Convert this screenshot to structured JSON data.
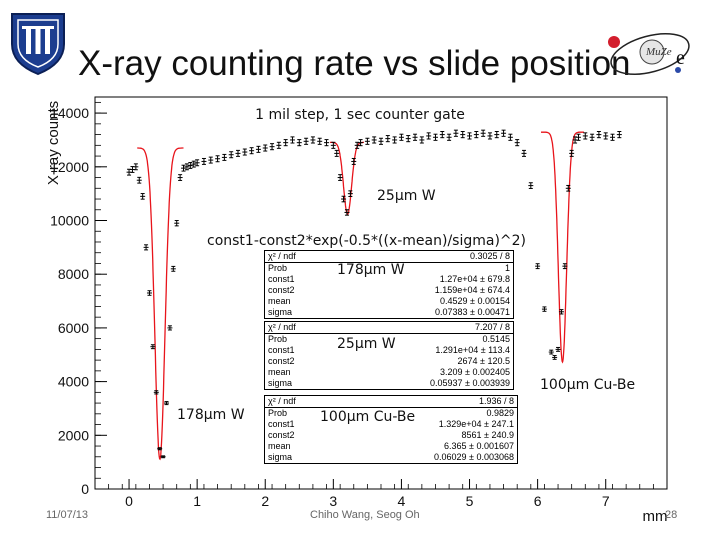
{
  "slide": {
    "title": "X-ray counting rate vs slide position",
    "footer_date": "11/07/13",
    "footer_author": "Chiho Wang, Seog Oh",
    "page_number": "28",
    "logo_icon": "university-shield-logo-icon",
    "muze_logo_icon": "muze-experiment-logo-icon",
    "muze_logo_text": "MuZe"
  },
  "chart_data": {
    "type": "scatter",
    "title": "1 mil step, 1 sec counter gate",
    "xlabel": "mm",
    "ylabel": "X-ray counts",
    "xlim": [
      -0.5,
      7.9
    ],
    "ylim": [
      0,
      14600
    ],
    "xticks": [
      0,
      1,
      2,
      3,
      4,
      5,
      6,
      7
    ],
    "yticks": [
      0,
      2000,
      4000,
      6000,
      8000,
      10000,
      12000,
      14000
    ],
    "grid": false,
    "marker_color": "#000000",
    "fit_color": "#e8141b",
    "fit_function": "const1-const2*exp(-0.5*((x-mean)/sigma)^2)",
    "annotations": [
      {
        "text": "25μm W",
        "target_x": 3.2
      },
      {
        "text": "178μm W",
        "target_x": 0.46
      },
      {
        "text": "25μm W",
        "target_x": 3.2
      },
      {
        "text": "178μm W",
        "target_x": 0.46
      },
      {
        "text": "100μm Cu-Be",
        "target_x": 6.36
      },
      {
        "text": "100μm Cu-Be",
        "target_x": 6.36
      }
    ],
    "series": [
      {
        "x": [
          0.0,
          0.05,
          0.1,
          0.15,
          0.2,
          0.25,
          0.3,
          0.35,
          0.4,
          0.45,
          0.5,
          0.55,
          0.6,
          0.65,
          0.7,
          0.75,
          0.8,
          0.85,
          0.9,
          0.95,
          1.0,
          1.1,
          1.2,
          1.3,
          1.4,
          1.5,
          1.6,
          1.7,
          1.8,
          1.9,
          2.0,
          2.1,
          2.2,
          2.3,
          2.4,
          2.5,
          2.6,
          2.7,
          2.8,
          2.9,
          3.0,
          3.05,
          3.1,
          3.15,
          3.2,
          3.25,
          3.3,
          3.35,
          3.4,
          3.5,
          3.6,
          3.7,
          3.8,
          3.9,
          4.0,
          4.1,
          4.2,
          4.3,
          4.4,
          4.5,
          4.6,
          4.7,
          4.8,
          4.9,
          5.0,
          5.1,
          5.2,
          5.3,
          5.4,
          5.5,
          5.6,
          5.7,
          5.8,
          5.9,
          6.0,
          6.1,
          6.2,
          6.25,
          6.3,
          6.35,
          6.4,
          6.45,
          6.5,
          6.55,
          6.6,
          6.7,
          6.8,
          6.9,
          7.0,
          7.1,
          7.2
        ],
        "y": [
          11800,
          11900,
          12000,
          11500,
          10900,
          9000,
          7300,
          5300,
          3600,
          1500,
          1200,
          3200,
          6000,
          8200,
          9900,
          11600,
          11950,
          12000,
          12050,
          12100,
          12150,
          12200,
          12250,
          12300,
          12350,
          12450,
          12500,
          12550,
          12600,
          12650,
          12700,
          12750,
          12800,
          12900,
          13000,
          12900,
          12950,
          13000,
          12950,
          12900,
          12800,
          12500,
          11600,
          10800,
          10300,
          11000,
          12200,
          12800,
          12900,
          12950,
          13000,
          12950,
          13050,
          13000,
          13100,
          13050,
          13100,
          13000,
          13150,
          13100,
          13200,
          13100,
          13250,
          13200,
          13150,
          13200,
          13250,
          13150,
          13200,
          13250,
          13100,
          12900,
          12500,
          11300,
          8300,
          6700,
          5100,
          4900,
          5200,
          6600,
          8300,
          11200,
          12500,
          13000,
          13100,
          13150,
          13100,
          13200,
          13150,
          13100,
          13200
        ]
      }
    ],
    "fit_panels": [
      {
        "rows": [
          [
            "χ² / ndf",
            "0.3025 / 8"
          ],
          [
            "Prob",
            "1"
          ],
          [
            "const1",
            "1.27e+04 ± 679.8"
          ],
          [
            "const2",
            "1.159e+04 ± 674.4"
          ],
          [
            "mean",
            "0.4529 ± 0.00154"
          ],
          [
            "sigma",
            "0.07383 ± 0.00471"
          ]
        ]
      },
      {
        "rows": [
          [
            "χ² / ndf",
            "7.207 / 8"
          ],
          [
            "Prob",
            "0.5145"
          ],
          [
            "const1",
            "1.291e+04 ± 113.4"
          ],
          [
            "const2",
            "2674 ± 120.5"
          ],
          [
            "mean",
            "3.209 ± 0.002405"
          ],
          [
            "sigma",
            "0.05937 ± 0.003939"
          ]
        ]
      },
      {
        "rows": [
          [
            "χ² / ndf",
            "1.936 / 8"
          ],
          [
            "Prob",
            "0.9829"
          ],
          [
            "const1",
            "1.329e+04 ± 247.1"
          ],
          [
            "const2",
            "8561 ± 240.9"
          ],
          [
            "mean",
            "6.365 ± 0.001607"
          ],
          [
            "sigma",
            "0.06029 ± 0.003068"
          ]
        ]
      }
    ]
  }
}
